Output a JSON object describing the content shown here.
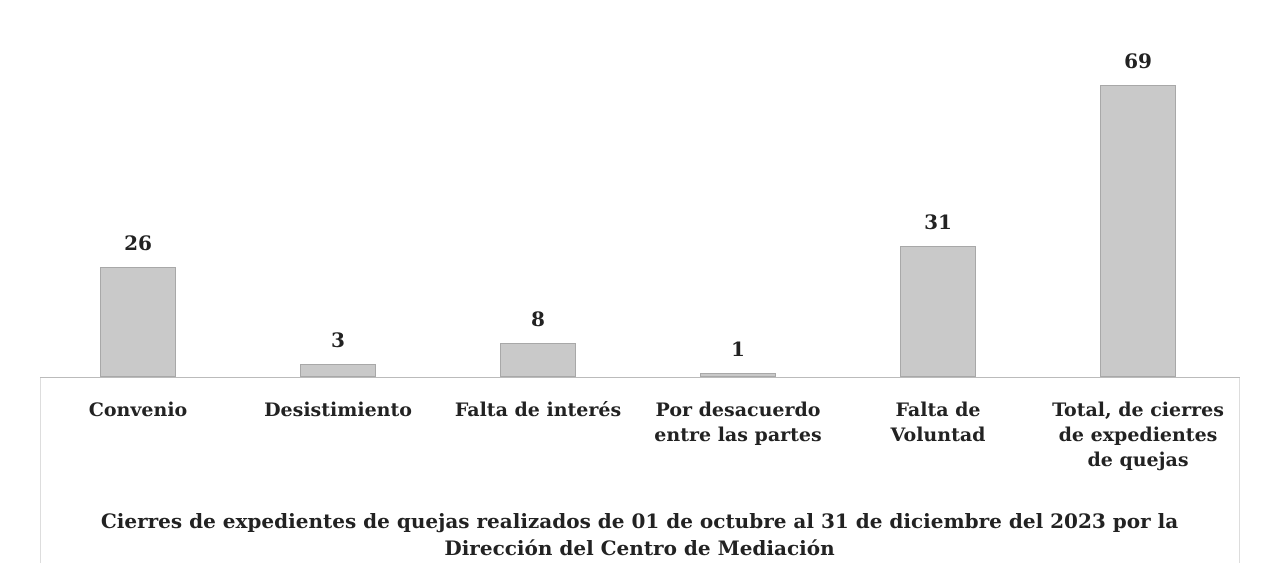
{
  "chart_data": {
    "type": "bar",
    "title": "Cierres de expedientes de quejas realizados de 01 de octubre al 31 de diciembre del 2023 por la\nDirección del Centro de Mediación",
    "categories": [
      "Convenio",
      "Desistimiento",
      "Falta de interés",
      "Por desacuerdo\nentre las partes",
      "Falta de\nVoluntad",
      "Total, de cierres\nde expedientes\nde quejas"
    ],
    "values": [
      26,
      3,
      8,
      1,
      31,
      69
    ],
    "color": "#c9c9c9"
  }
}
